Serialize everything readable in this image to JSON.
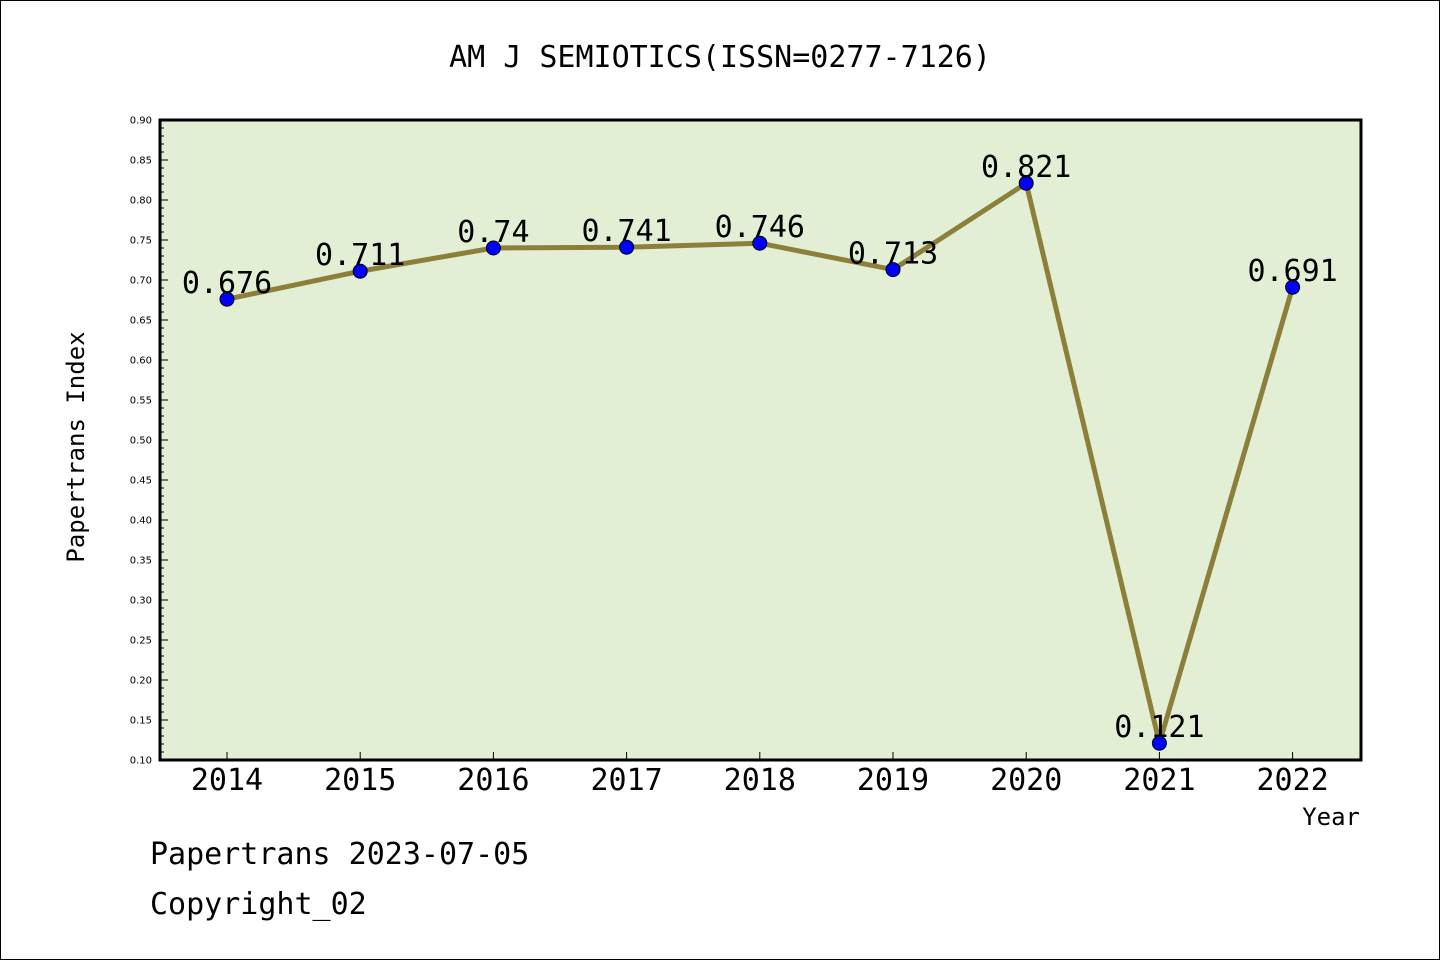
{
  "chart_data": {
    "type": "line",
    "title": "AM J SEMIOTICS(ISSN=0277-7126)",
    "xlabel": "Year",
    "ylabel": "Papertrans Index",
    "categories": [
      "2014",
      "2015",
      "2016",
      "2017",
      "2018",
      "2019",
      "2020",
      "2021",
      "2022"
    ],
    "series": [
      {
        "values": [
          0.676,
          0.711,
          0.74,
          0.741,
          0.746,
          0.713,
          0.821,
          0.121,
          0.691
        ]
      }
    ],
    "data_labels": [
      "0.676",
      "0.711",
      "0.74",
      "0.741",
      "0.746",
      "0.713",
      "0.821",
      "0.121",
      "0.691"
    ],
    "ylim": [
      0.1,
      0.9
    ],
    "yticks": [
      "0.10",
      "0.15",
      "0.20",
      "0.25",
      "0.30",
      "0.35",
      "0.40",
      "0.45",
      "0.50",
      "0.55",
      "0.60",
      "0.65",
      "0.70",
      "0.75",
      "0.80",
      "0.85",
      "0.90"
    ],
    "grid": false,
    "colors": {
      "plot_background": "#e2efd5",
      "line": "#8c7f3a",
      "marker": "#0000ff"
    }
  },
  "footer": {
    "line1": "Papertrans 2023-07-05",
    "line2": "Copyright_02"
  }
}
